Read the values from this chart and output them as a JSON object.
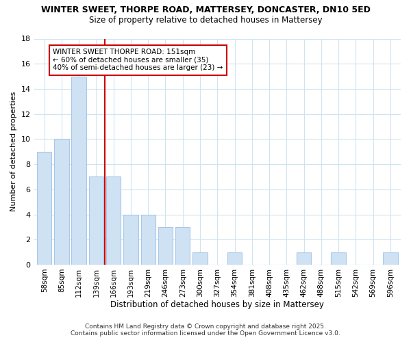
{
  "title_line1": "WINTER SWEET, THORPE ROAD, MATTERSEY, DONCASTER, DN10 5ED",
  "title_line2": "Size of property relative to detached houses in Mattersey",
  "xlabel": "Distribution of detached houses by size in Mattersey",
  "ylabel": "Number of detached properties",
  "categories": [
    "58sqm",
    "85sqm",
    "112sqm",
    "139sqm",
    "166sqm",
    "193sqm",
    "219sqm",
    "246sqm",
    "273sqm",
    "300sqm",
    "327sqm",
    "354sqm",
    "381sqm",
    "408sqm",
    "435sqm",
    "462sqm",
    "488sqm",
    "515sqm",
    "542sqm",
    "569sqm",
    "596sqm"
  ],
  "values": [
    9,
    10,
    15,
    7,
    7,
    4,
    4,
    3,
    3,
    1,
    0,
    1,
    0,
    0,
    0,
    1,
    0,
    1,
    0,
    0,
    1
  ],
  "bar_color": "#cfe2f3",
  "bar_edge_color": "#a8c8e8",
  "property_line_x": 3.5,
  "property_label": "WINTER SWEET THORPE ROAD: 151sqm",
  "annotation_line2": "← 60% of detached houses are smaller (35)",
  "annotation_line3": "40% of semi-detached houses are larger (23) →",
  "annotation_box_color": "#ffffff",
  "annotation_box_edge": "#cc0000",
  "vline_color": "#cc0000",
  "ylim": [
    0,
    18
  ],
  "yticks": [
    0,
    2,
    4,
    6,
    8,
    10,
    12,
    14,
    16,
    18
  ],
  "footer_line1": "Contains HM Land Registry data © Crown copyright and database right 2025.",
  "footer_line2": "Contains public sector information licensed under the Open Government Licence v3.0.",
  "background_color": "#ffffff",
  "plot_bg_color": "#ffffff",
  "grid_color": "#d0e4f0"
}
